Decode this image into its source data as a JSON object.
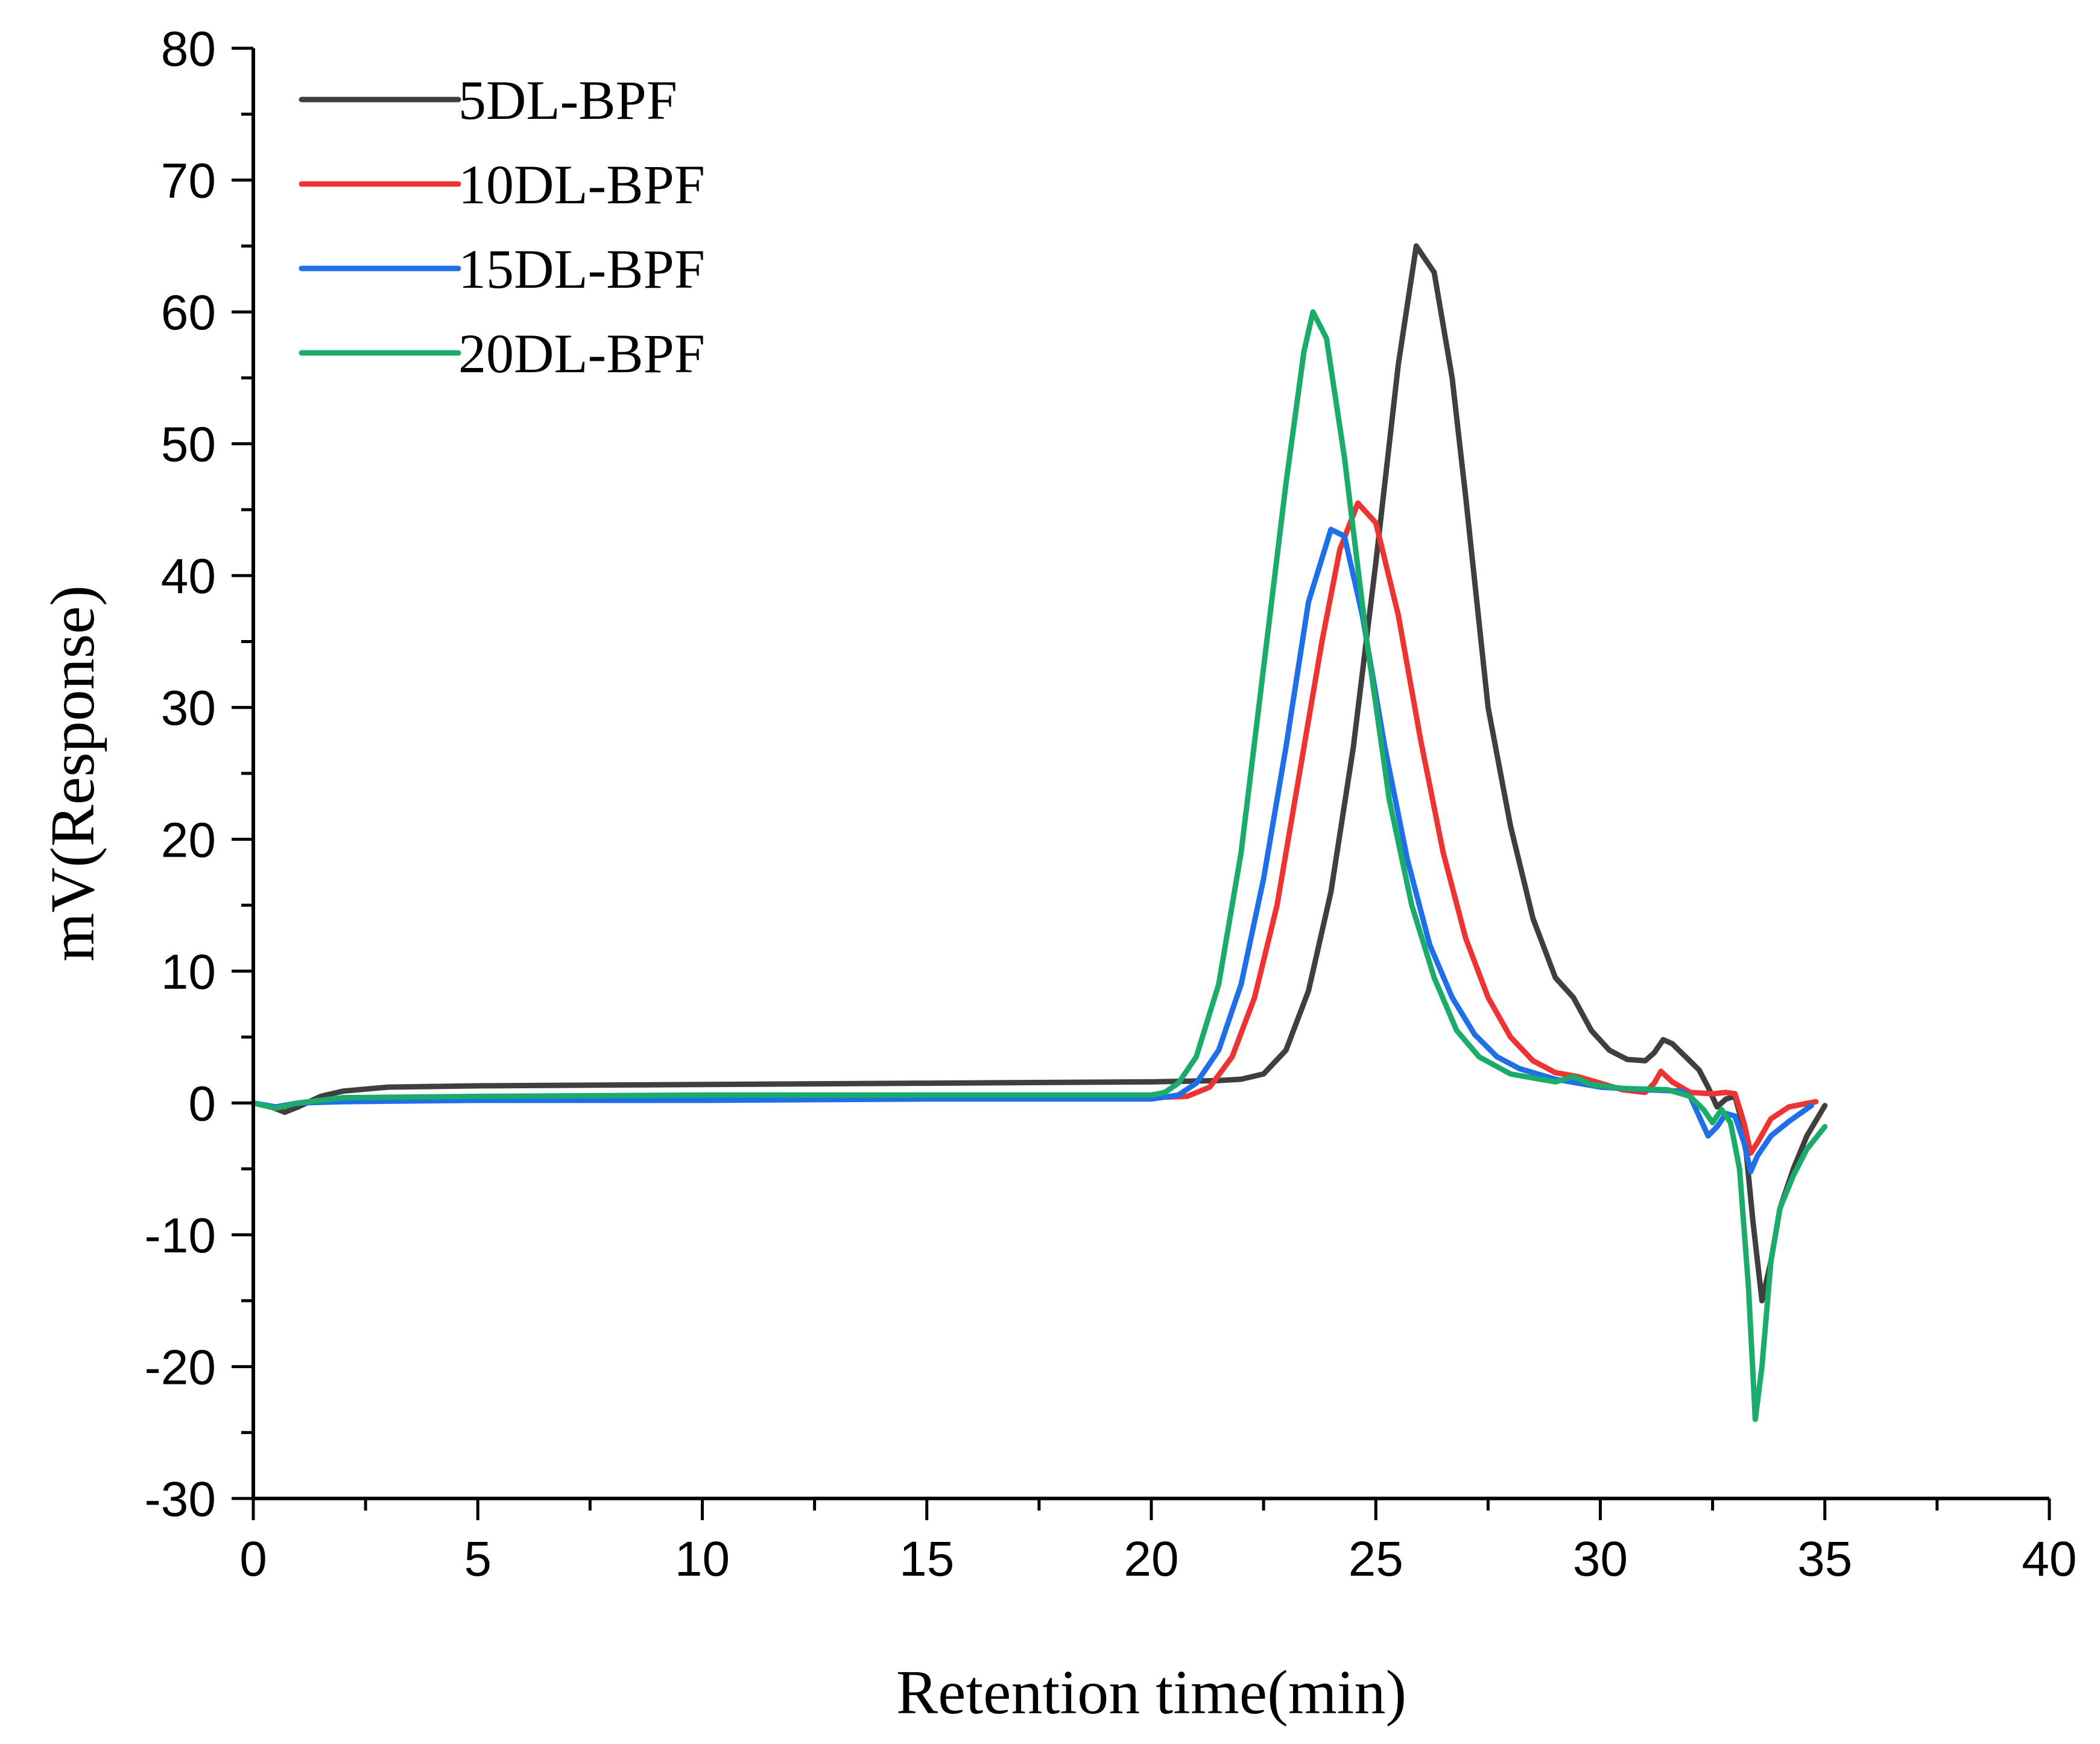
{
  "chart_data": {
    "type": "line",
    "title": "",
    "xlabel": "Retention time(min)",
    "ylabel": "mV(Response)",
    "xlim": [
      0,
      40
    ],
    "ylim": [
      -30,
      80
    ],
    "xticks": [
      0,
      5,
      10,
      15,
      20,
      25,
      30,
      35,
      40
    ],
    "yticks": [
      -30,
      -20,
      -10,
      0,
      10,
      20,
      30,
      40,
      50,
      60,
      70,
      80
    ],
    "grid": false,
    "legend_position": "top-left",
    "series": [
      {
        "name": "5DL-BPF",
        "color": "#3f3f3f",
        "points": [
          [
            0,
            0
          ],
          [
            0.4,
            -0.3
          ],
          [
            0.7,
            -0.7
          ],
          [
            1.0,
            -0.3
          ],
          [
            1.5,
            0.5
          ],
          [
            2,
            0.9
          ],
          [
            3,
            1.2
          ],
          [
            5,
            1.3
          ],
          [
            10,
            1.4
          ],
          [
            15,
            1.5
          ],
          [
            20,
            1.6
          ],
          [
            21.5,
            1.7
          ],
          [
            22,
            1.8
          ],
          [
            22.5,
            2.2
          ],
          [
            23,
            4
          ],
          [
            23.5,
            8.5
          ],
          [
            24,
            16
          ],
          [
            24.5,
            27
          ],
          [
            25,
            41
          ],
          [
            25.5,
            56
          ],
          [
            25.9,
            65
          ],
          [
            26.3,
            63
          ],
          [
            26.7,
            55
          ],
          [
            27,
            46
          ],
          [
            27.5,
            30
          ],
          [
            28,
            21
          ],
          [
            28.5,
            14
          ],
          [
            29,
            9.5
          ],
          [
            29.4,
            8
          ],
          [
            29.8,
            5.5
          ],
          [
            30.2,
            4
          ],
          [
            30.6,
            3.3
          ],
          [
            31,
            3.2
          ],
          [
            31.2,
            3.8
          ],
          [
            31.4,
            4.8
          ],
          [
            31.6,
            4.5
          ],
          [
            31.9,
            3.5
          ],
          [
            32.2,
            2.5
          ],
          [
            32.4,
            1.2
          ],
          [
            32.6,
            -0.3
          ],
          [
            32.8,
            0.3
          ],
          [
            33.0,
            0.5
          ],
          [
            33.2,
            -2
          ],
          [
            33.4,
            -9
          ],
          [
            33.6,
            -15
          ],
          [
            33.8,
            -12
          ],
          [
            34.0,
            -8
          ],
          [
            34.3,
            -5
          ],
          [
            34.6,
            -2.5
          ],
          [
            35.0,
            -0.2
          ]
        ]
      },
      {
        "name": "10DL-BPF",
        "color": "#ee3333",
        "points": [
          [
            0,
            0
          ],
          [
            0.5,
            -0.4
          ],
          [
            1,
            0
          ],
          [
            2,
            0.2
          ],
          [
            5,
            0.3
          ],
          [
            10,
            0.3
          ],
          [
            15,
            0.4
          ],
          [
            20,
            0.4
          ],
          [
            20.8,
            0.5
          ],
          [
            21.3,
            1.2
          ],
          [
            21.8,
            3.5
          ],
          [
            22.3,
            8
          ],
          [
            22.8,
            15
          ],
          [
            23.3,
            25
          ],
          [
            23.8,
            35
          ],
          [
            24.2,
            42
          ],
          [
            24.6,
            45.5
          ],
          [
            25,
            44
          ],
          [
            25.5,
            37
          ],
          [
            26,
            27.5
          ],
          [
            26.5,
            19
          ],
          [
            27,
            12.5
          ],
          [
            27.5,
            8
          ],
          [
            28,
            5
          ],
          [
            28.5,
            3.2
          ],
          [
            29,
            2.3
          ],
          [
            29.5,
            2
          ],
          [
            30,
            1.5
          ],
          [
            30.5,
            1
          ],
          [
            31,
            0.8
          ],
          [
            31.2,
            1.5
          ],
          [
            31.35,
            2.4
          ],
          [
            31.6,
            1.6
          ],
          [
            32,
            0.8
          ],
          [
            32.5,
            0.7
          ],
          [
            32.8,
            0.8
          ],
          [
            33.0,
            0.7
          ],
          [
            33.2,
            -1.5
          ],
          [
            33.35,
            -3.8
          ],
          [
            33.5,
            -3
          ],
          [
            33.8,
            -1.2
          ],
          [
            34.2,
            -0.3
          ],
          [
            34.8,
            0.1
          ]
        ]
      },
      {
        "name": "15DL-BPF",
        "color": "#1f6fe8",
        "points": [
          [
            0,
            0
          ],
          [
            0.5,
            -0.3
          ],
          [
            1,
            0
          ],
          [
            2,
            0.1
          ],
          [
            5,
            0.2
          ],
          [
            10,
            0.2
          ],
          [
            15,
            0.3
          ],
          [
            20,
            0.3
          ],
          [
            20.6,
            0.6
          ],
          [
            21,
            1.5
          ],
          [
            21.5,
            4
          ],
          [
            22,
            9
          ],
          [
            22.5,
            17
          ],
          [
            23,
            27
          ],
          [
            23.5,
            38
          ],
          [
            24,
            43.5
          ],
          [
            24.3,
            43
          ],
          [
            24.7,
            37
          ],
          [
            25.2,
            27
          ],
          [
            25.7,
            18.5
          ],
          [
            26.2,
            12
          ],
          [
            26.7,
            8
          ],
          [
            27.2,
            5.2
          ],
          [
            27.7,
            3.5
          ],
          [
            28.2,
            2.6
          ],
          [
            29,
            1.8
          ],
          [
            30,
            1.2
          ],
          [
            31,
            1
          ],
          [
            31.8,
            0.9
          ],
          [
            32,
            0.5
          ],
          [
            32.2,
            -1
          ],
          [
            32.4,
            -2.5
          ],
          [
            32.6,
            -1.8
          ],
          [
            32.8,
            -0.8
          ],
          [
            33.0,
            -1
          ],
          [
            33.2,
            -3
          ],
          [
            33.35,
            -5.2
          ],
          [
            33.5,
            -4
          ],
          [
            33.8,
            -2.5
          ],
          [
            34.2,
            -1.4
          ],
          [
            34.7,
            -0.2
          ]
        ]
      },
      {
        "name": "20DL-BPF",
        "color": "#1bab6a",
        "points": [
          [
            0,
            0
          ],
          [
            0.5,
            -0.4
          ],
          [
            1,
            0
          ],
          [
            2,
            0.4
          ],
          [
            5,
            0.5
          ],
          [
            10,
            0.6
          ],
          [
            15,
            0.6
          ],
          [
            20,
            0.6
          ],
          [
            20.3,
            0.8
          ],
          [
            20.6,
            1.5
          ],
          [
            21,
            3.5
          ],
          [
            21.5,
            9
          ],
          [
            22,
            19
          ],
          [
            22.5,
            33
          ],
          [
            23,
            47
          ],
          [
            23.4,
            57
          ],
          [
            23.6,
            60
          ],
          [
            23.9,
            58
          ],
          [
            24.3,
            49
          ],
          [
            24.8,
            35
          ],
          [
            25.3,
            23
          ],
          [
            25.8,
            15
          ],
          [
            26.3,
            9.5
          ],
          [
            26.8,
            5.5
          ],
          [
            27.3,
            3.5
          ],
          [
            28,
            2.2
          ],
          [
            29,
            1.6
          ],
          [
            29.4,
            2
          ],
          [
            29.8,
            1.4
          ],
          [
            30.5,
            1.1
          ],
          [
            31.5,
            1
          ],
          [
            32,
            0.5
          ],
          [
            32.3,
            -0.5
          ],
          [
            32.5,
            -1.5
          ],
          [
            32.7,
            -0.5
          ],
          [
            32.9,
            -1.5
          ],
          [
            33.1,
            -5
          ],
          [
            33.3,
            -14
          ],
          [
            33.45,
            -24
          ],
          [
            33.6,
            -20
          ],
          [
            33.8,
            -12
          ],
          [
            34.0,
            -8
          ],
          [
            34.3,
            -5.5
          ],
          [
            34.6,
            -3.5
          ],
          [
            35,
            -1.8
          ]
        ]
      }
    ]
  }
}
